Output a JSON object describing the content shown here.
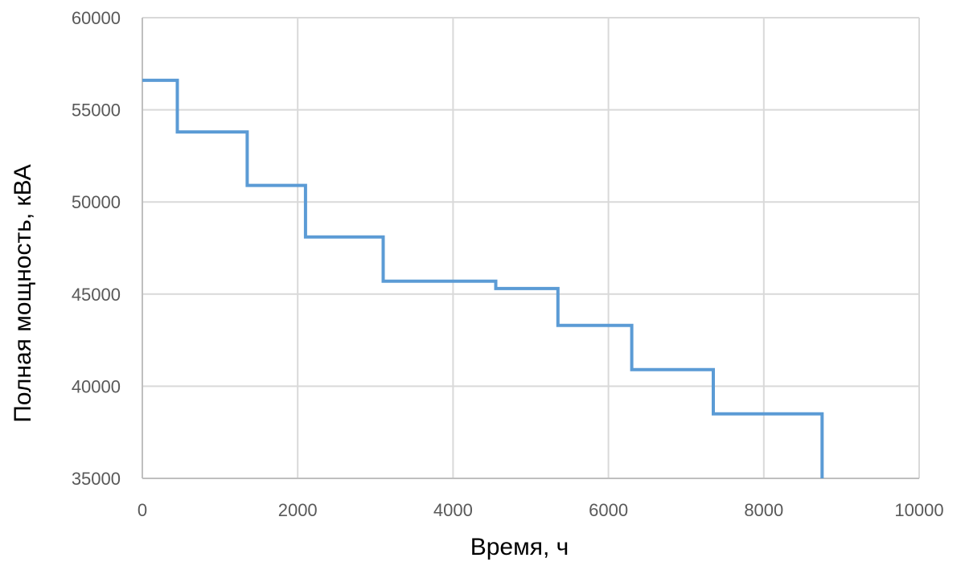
{
  "chart_data": {
    "type": "line",
    "step": true,
    "xlabel": "Время, ч",
    "ylabel": "Полная мощность, кВА",
    "xlim": [
      0,
      10000
    ],
    "ylim": [
      35000,
      60000
    ],
    "x_ticks": [
      0,
      2000,
      4000,
      6000,
      8000,
      10000
    ],
    "y_ticks": [
      35000,
      40000,
      45000,
      50000,
      55000,
      60000
    ],
    "grid": true,
    "line_color": "#5B9BD5",
    "grid_color": "#D9D9D9",
    "series": [
      {
        "points": [
          [
            0,
            56600
          ],
          [
            450,
            56600
          ],
          [
            450,
            53800
          ],
          [
            1350,
            53800
          ],
          [
            1350,
            50900
          ],
          [
            2100,
            50900
          ],
          [
            2100,
            48100
          ],
          [
            3100,
            48100
          ],
          [
            3100,
            45700
          ],
          [
            4550,
            45700
          ],
          [
            4550,
            45300
          ],
          [
            5350,
            45300
          ],
          [
            5350,
            43300
          ],
          [
            6300,
            43300
          ],
          [
            6300,
            40900
          ],
          [
            7350,
            40900
          ],
          [
            7350,
            38500
          ],
          [
            8750,
            38500
          ],
          [
            8750,
            35000
          ]
        ]
      }
    ]
  }
}
